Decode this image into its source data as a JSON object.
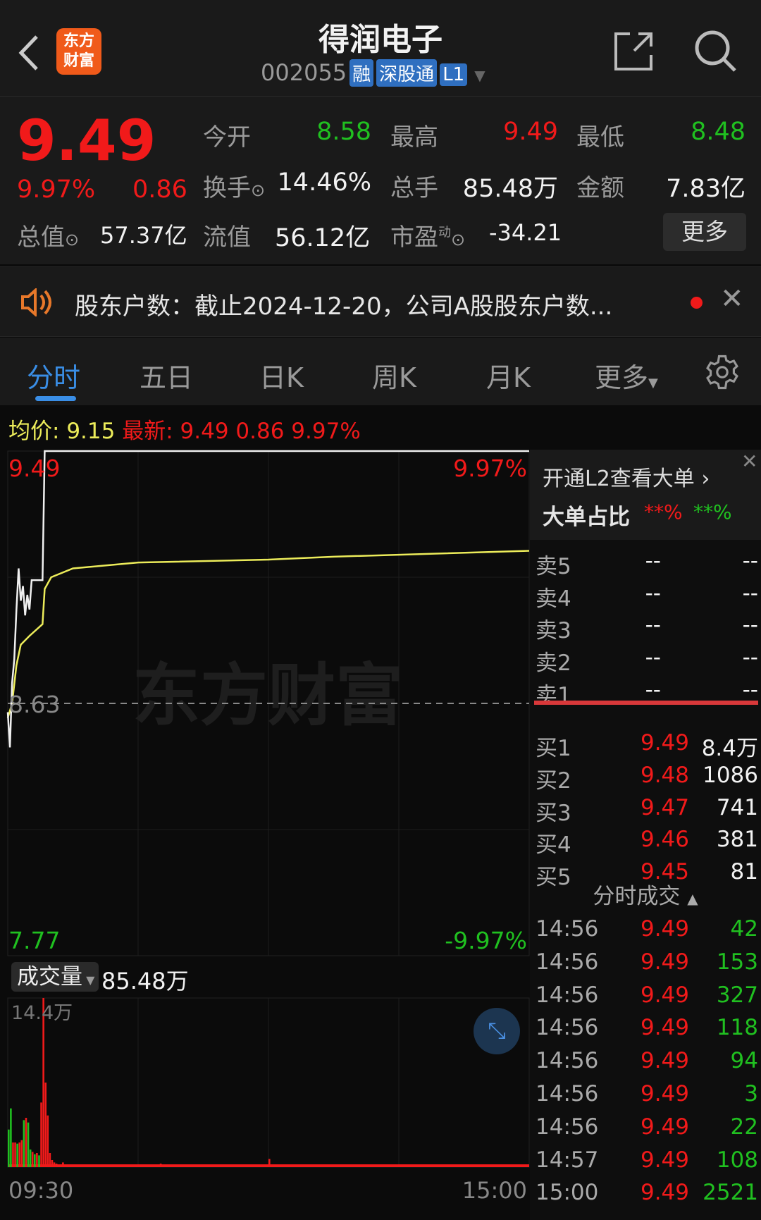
{
  "header": {
    "title": "得润电子",
    "code": "002055",
    "badges": [
      "融",
      "深股通",
      "L1"
    ],
    "logo_text": "东方财富"
  },
  "quote": {
    "price": "9.49",
    "change_pct": "9.97%",
    "change": "0.86",
    "open_label": "今开",
    "open": "8.58",
    "high_label": "最高",
    "high": "9.49",
    "low_label": "最低",
    "low": "8.48",
    "turnover_label": "换手",
    "turnover": "14.46%",
    "volume_label": "总手",
    "volume": "85.48万",
    "amount_label": "金额",
    "amount": "7.83亿",
    "mcap_label": "总值",
    "mcap": "57.37亿",
    "float_label": "流值",
    "float_mcap": "56.12亿",
    "pe_label": "市盈",
    "pe_sup": "动",
    "pe": "-34.21",
    "more_label": "更多"
  },
  "notice": {
    "text": "股东户数：截止2024-12-20，公司A股股东户数..."
  },
  "tabs": [
    {
      "label": "分时",
      "active": true
    },
    {
      "label": "五日"
    },
    {
      "label": "日K"
    },
    {
      "label": "周K"
    },
    {
      "label": "月K"
    },
    {
      "label": "更多"
    }
  ],
  "avg_bar": {
    "avg_label": "均价:",
    "avg": "9.15",
    "latest_label": "最新:",
    "latest": "9.49",
    "change": "0.86",
    "pct": "9.97%"
  },
  "chart": {
    "top_price": "9.49",
    "top_pct": "9.97%",
    "mid_price": "8.63",
    "bottom_price": "7.77",
    "bottom_pct": "-9.97%",
    "watermark": "东方财富",
    "time_start": "09:30",
    "time_end": "15:00"
  },
  "volume": {
    "label": "成交量",
    "total": "85.48万",
    "max_label": "14.4万"
  },
  "panel": {
    "l2_label": "开通L2查看大单",
    "big_label": "大单占比",
    "big_buy": "**%",
    "big_sell": "**%",
    "asks": [
      {
        "label": "卖5",
        "price": "--",
        "vol": "--"
      },
      {
        "label": "卖4",
        "price": "--",
        "vol": "--"
      },
      {
        "label": "卖3",
        "price": "--",
        "vol": "--"
      },
      {
        "label": "卖2",
        "price": "--",
        "vol": "--"
      },
      {
        "label": "卖1",
        "price": "--",
        "vol": "--"
      }
    ],
    "bids": [
      {
        "label": "买1",
        "price": "9.49",
        "vol": "8.4万"
      },
      {
        "label": "买2",
        "price": "9.48",
        "vol": "1086"
      },
      {
        "label": "买3",
        "price": "9.47",
        "vol": "741"
      },
      {
        "label": "买4",
        "price": "9.46",
        "vol": "381"
      },
      {
        "label": "买5",
        "price": "9.45",
        "vol": "81"
      }
    ],
    "trades_label": "分时成交",
    "trades": [
      {
        "time": "14:56",
        "price": "9.49",
        "vol": "42"
      },
      {
        "time": "14:56",
        "price": "9.49",
        "vol": "153"
      },
      {
        "time": "14:56",
        "price": "9.49",
        "vol": "327"
      },
      {
        "time": "14:56",
        "price": "9.49",
        "vol": "118"
      },
      {
        "time": "14:56",
        "price": "9.49",
        "vol": "94"
      },
      {
        "time": "14:56",
        "price": "9.49",
        "vol": "3"
      },
      {
        "time": "14:56",
        "price": "9.49",
        "vol": "22"
      },
      {
        "time": "14:57",
        "price": "9.49",
        "vol": "108"
      },
      {
        "time": "15:00",
        "price": "9.49",
        "vol": "2521"
      }
    ]
  },
  "colors": {
    "up": "#f11a1a",
    "down": "#20c020",
    "accent": "#3a8ee6",
    "price_line": "#f0f0f0",
    "avg_line": "#ecec5a",
    "logo": "#f05a1a"
  },
  "chart_data": {
    "type": "line",
    "ylim": [
      7.77,
      9.49
    ],
    "prev_close": 8.63,
    "price": [
      [
        "09:30",
        8.6
      ],
      [
        "09:31",
        8.48
      ],
      [
        "09:32",
        8.7
      ],
      [
        "09:33",
        8.78
      ],
      [
        "09:34",
        8.95
      ],
      [
        "09:35",
        9.09
      ],
      [
        "09:36",
        8.98
      ],
      [
        "09:37",
        9.03
      ],
      [
        "09:38",
        8.93
      ],
      [
        "09:39",
        9.0
      ],
      [
        "09:40",
        8.95
      ],
      [
        "09:41",
        9.05
      ],
      [
        "09:46",
        9.05
      ],
      [
        "09:47",
        9.49
      ],
      [
        "15:00",
        9.49
      ]
    ],
    "avg": [
      [
        "09:30",
        8.58
      ],
      [
        "09:32",
        8.63
      ],
      [
        "09:34",
        8.76
      ],
      [
        "09:36",
        8.83
      ],
      [
        "09:40",
        8.86
      ],
      [
        "09:46",
        8.9
      ],
      [
        "09:47",
        9.02
      ],
      [
        "09:50",
        9.06
      ],
      [
        "10:00",
        9.09
      ],
      [
        "10:30",
        9.11
      ],
      [
        "11:30",
        9.12
      ],
      [
        "13:30",
        9.13
      ],
      [
        "15:00",
        9.15
      ]
    ],
    "volume_unit": "万",
    "volume_ylim": [
      0,
      14.4
    ],
    "volume_bars": [
      [
        "09:30",
        3.2,
        "down"
      ],
      [
        "09:31",
        5.0,
        "down"
      ],
      [
        "09:32",
        2.1,
        "up"
      ],
      [
        "09:33",
        2.1,
        "up"
      ],
      [
        "09:34",
        2.0,
        "down"
      ],
      [
        "09:35",
        2.1,
        "up"
      ],
      [
        "09:36",
        2.3,
        "up"
      ],
      [
        "09:37",
        4.0,
        "down"
      ],
      [
        "09:38",
        4.2,
        "up"
      ],
      [
        "09:39",
        3.8,
        "down"
      ],
      [
        "09:40",
        1.5,
        "down"
      ],
      [
        "09:41",
        1.3,
        "up"
      ],
      [
        "09:42",
        1.1,
        "down"
      ],
      [
        "09:43",
        1.2,
        "up"
      ],
      [
        "09:44",
        1.0,
        "down"
      ],
      [
        "09:45",
        5.5,
        "up"
      ],
      [
        "09:46",
        14.4,
        "up"
      ],
      [
        "09:47",
        7.2,
        "up"
      ],
      [
        "09:48",
        4.4,
        "up"
      ],
      [
        "09:49",
        1.2,
        "up"
      ],
      [
        "09:50",
        0.6,
        "up"
      ],
      [
        "09:51",
        0.4,
        "up"
      ],
      [
        "09:52",
        0.3,
        "up"
      ],
      [
        "09:55",
        0.4,
        "up"
      ],
      [
        "10:00",
        0.2,
        "up"
      ],
      [
        "10:40",
        0.3,
        "up"
      ],
      [
        "11:30",
        0.7,
        "up"
      ],
      [
        "13:05",
        0.2,
        "up"
      ]
    ]
  }
}
